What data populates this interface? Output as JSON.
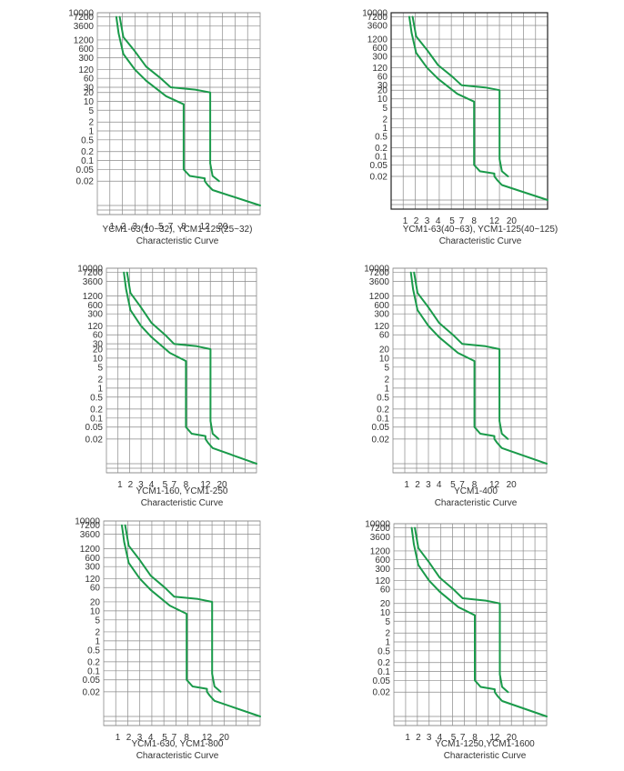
{
  "chart_data": [
    {
      "type": "line",
      "title": "YCM1-63(10~32), YCM1-125(25~32)",
      "subtitle": "Characteristic Curve",
      "y_ticks": [
        "10000",
        "7200",
        "3600",
        "1200",
        "600",
        "300",
        "120",
        "60",
        "30",
        "20",
        "10",
        "5",
        "2",
        "1",
        "0.5",
        "0.2",
        "0.1",
        "0.05",
        "0.02"
      ],
      "x_ticks": [
        "1",
        "2",
        "3",
        "4",
        "5",
        "7",
        "8",
        "12",
        "20"
      ],
      "y_scale": "log",
      "grid": true,
      "series": [
        {
          "x": [
            1.3,
            1.5,
            2,
            3,
            4,
            6,
            8,
            8,
            9,
            12,
            12,
            13,
            15,
            40
          ],
          "y": [
            7200,
            2000,
            400,
            120,
            50,
            15,
            8,
            0.05,
            0.03,
            0.025,
            0.02,
            0.015,
            0.01,
            0.003
          ]
        },
        {
          "x": [
            1.6,
            2,
            3,
            4,
            5,
            7,
            10,
            14,
            14,
            15,
            18
          ],
          "y": [
            7200,
            1500,
            500,
            150,
            60,
            30,
            25,
            20,
            0.08,
            0.03,
            0.02
          ]
        }
      ]
    },
    {
      "type": "line",
      "title": "YCM1-63(40~63), YCM1-125(40~125)",
      "subtitle": "Characteristic Curve",
      "y_ticks": [
        "10000",
        "7200",
        "3600",
        "1200",
        "600",
        "300",
        "120",
        "60",
        "30",
        "20",
        "10",
        "5",
        "2",
        "1",
        "0.5",
        "0.2",
        "0.1",
        "0.05",
        "0.02"
      ],
      "x_ticks": [
        "1",
        "2",
        "3",
        "4",
        "5",
        "7",
        "8",
        "12",
        "20"
      ],
      "y_scale": "log",
      "grid": true,
      "series": [
        {
          "x": [
            1.3,
            1.5,
            2,
            3,
            4,
            6,
            8,
            8,
            9,
            12,
            12,
            13,
            15,
            40
          ],
          "y": [
            7200,
            2000,
            400,
            120,
            50,
            15,
            8,
            0.05,
            0.03,
            0.025,
            0.02,
            0.015,
            0.01,
            0.003
          ]
        },
        {
          "x": [
            1.6,
            2,
            3,
            4,
            5,
            7,
            10,
            14,
            14,
            15,
            18
          ],
          "y": [
            7200,
            1500,
            500,
            150,
            60,
            30,
            25,
            20,
            0.08,
            0.03,
            0.02
          ]
        }
      ]
    },
    {
      "type": "line",
      "title": "YCM1-160, YCM1-250",
      "subtitle": "Characteristic Curve",
      "y_ticks": [
        "10000",
        "7200",
        "3600",
        "1200",
        "600",
        "300",
        "120",
        "60",
        "30",
        "20",
        "10",
        "5",
        "2",
        "1",
        "0.5",
        "0.2",
        "0.1",
        "0.05",
        "0.02"
      ],
      "x_ticks": [
        "1",
        "2",
        "3",
        "4",
        "5",
        "7",
        "8",
        "12",
        "20"
      ],
      "y_scale": "log",
      "grid": true,
      "series": [
        {
          "x": [
            1.3,
            1.5,
            2,
            3,
            4,
            6,
            8,
            8,
            9,
            12,
            12,
            13,
            15,
            40
          ],
          "y": [
            7200,
            2000,
            400,
            120,
            50,
            15,
            8,
            0.05,
            0.03,
            0.025,
            0.02,
            0.015,
            0.01,
            0.003
          ]
        },
        {
          "x": [
            1.6,
            2,
            3,
            4,
            5,
            7,
            10,
            14,
            14,
            15,
            18
          ],
          "y": [
            7200,
            1500,
            500,
            150,
            60,
            30,
            25,
            20,
            0.08,
            0.03,
            0.02
          ]
        }
      ]
    },
    {
      "type": "line",
      "title": "YCM1-400",
      "subtitle": "Characteristic Curve",
      "y_ticks": [
        "10000",
        "7200",
        "3600",
        "1200",
        "600",
        "300",
        "120",
        "60",
        "20",
        "10",
        "5",
        "2",
        "1",
        "0.5",
        "0.2",
        "0.1",
        "0.05",
        "0.02"
      ],
      "x_ticks": [
        "1",
        "2",
        "3",
        "4",
        "5",
        "7",
        "8",
        "12",
        "20"
      ],
      "y_scale": "log",
      "grid": true,
      "series": [
        {
          "x": [
            1.3,
            1.5,
            2,
            3,
            4,
            6,
            8,
            8,
            9,
            12,
            12,
            13,
            15,
            40
          ],
          "y": [
            7200,
            2000,
            400,
            120,
            50,
            15,
            8,
            0.05,
            0.03,
            0.025,
            0.02,
            0.015,
            0.01,
            0.003
          ]
        },
        {
          "x": [
            1.6,
            2,
            3,
            4,
            5,
            7,
            10,
            14,
            14,
            15,
            18
          ],
          "y": [
            7200,
            1500,
            500,
            150,
            60,
            30,
            25,
            20,
            0.08,
            0.03,
            0.02
          ]
        }
      ]
    },
    {
      "type": "line",
      "title": "YCM1-630, YCM1-800",
      "subtitle": "Characteristic Curve",
      "y_ticks": [
        "10000",
        "7200",
        "3600",
        "1200",
        "600",
        "300",
        "120",
        "60",
        "20",
        "10",
        "5",
        "2",
        "1",
        "0.5",
        "0.2",
        "0.1",
        "0.05",
        "0.02"
      ],
      "x_ticks": [
        "1",
        "2",
        "3",
        "4",
        "5",
        "7",
        "8",
        "12",
        "20"
      ],
      "y_scale": "log",
      "grid": true,
      "series": [
        {
          "x": [
            1.3,
            1.5,
            2,
            3,
            4,
            6,
            8,
            8,
            9,
            12,
            12,
            13,
            15,
            40
          ],
          "y": [
            7200,
            2000,
            400,
            120,
            50,
            15,
            8,
            0.05,
            0.03,
            0.025,
            0.02,
            0.015,
            0.01,
            0.003
          ]
        },
        {
          "x": [
            1.6,
            2,
            3,
            4,
            5,
            7,
            10,
            14,
            14,
            15,
            18
          ],
          "y": [
            7200,
            1500,
            500,
            150,
            60,
            30,
            25,
            20,
            0.08,
            0.03,
            0.02
          ]
        }
      ]
    },
    {
      "type": "line",
      "title": "YCM1-1250,YCM1-1600",
      "subtitle": "Characteristic Curve",
      "y_ticks": [
        "10000",
        "7200",
        "3600",
        "1200",
        "600",
        "300",
        "120",
        "60",
        "20",
        "10",
        "5",
        "2",
        "1",
        "0.5",
        "0.2",
        "0.1",
        "0.05",
        "0.02"
      ],
      "x_ticks": [
        "1",
        "2",
        "3",
        "4",
        "5",
        "7",
        "8",
        "12",
        "20"
      ],
      "y_scale": "log",
      "grid": true,
      "series": [
        {
          "x": [
            1.3,
            1.5,
            2,
            3,
            4,
            6,
            8,
            8,
            9,
            12,
            12,
            13,
            15,
            40
          ],
          "y": [
            7200,
            2000,
            400,
            120,
            50,
            15,
            8,
            0.05,
            0.03,
            0.025,
            0.02,
            0.015,
            0.01,
            0.003
          ]
        },
        {
          "x": [
            1.6,
            2,
            3,
            4,
            5,
            7,
            10,
            14,
            14,
            15,
            18
          ],
          "y": [
            7200,
            1500,
            500,
            150,
            60,
            30,
            25,
            20,
            0.08,
            0.03,
            0.02
          ]
        }
      ]
    }
  ],
  "colors": {
    "curve": "#1a9a4a",
    "grid": "#8a8a8a"
  }
}
